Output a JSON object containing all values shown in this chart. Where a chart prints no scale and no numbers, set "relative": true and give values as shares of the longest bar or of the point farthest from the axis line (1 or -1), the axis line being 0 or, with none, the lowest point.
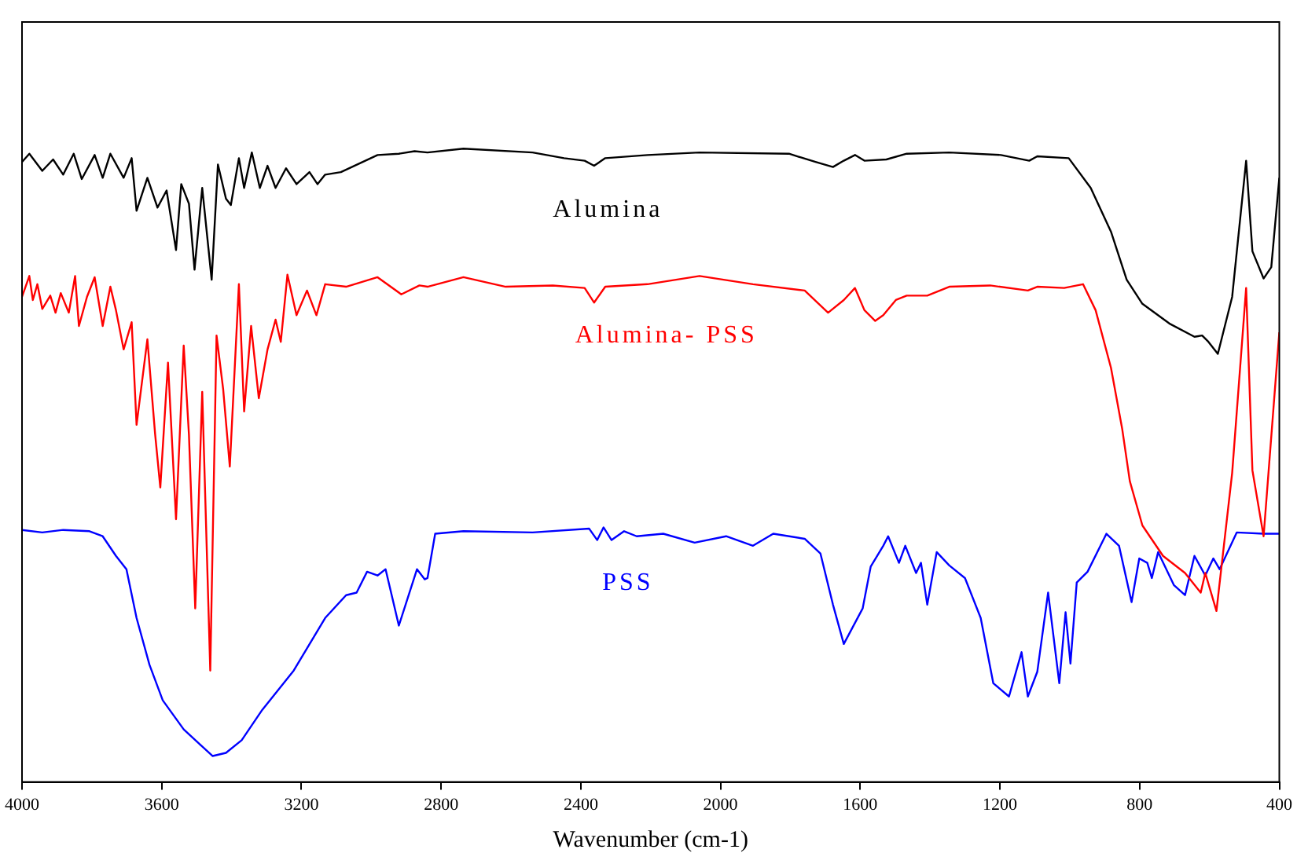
{
  "chart_data": {
    "type": "line",
    "relative": true,
    "xlabel": "Wavenumber (cm-1)",
    "xlim": [
      4000,
      400
    ],
    "xticks": [
      4000,
      3600,
      3200,
      2800,
      2400,
      2000,
      1600,
      1200,
      800,
      400
    ],
    "grid": false,
    "legend": false,
    "tick_labels": "x",
    "marker": "none",
    "line_style": "solid",
    "series": [
      {
        "name": "Alumina",
        "color": "#000000",
        "x": [
          4000,
          3979,
          3942,
          3911,
          3882,
          3852,
          3829,
          3792,
          3769,
          3747,
          3709,
          3686,
          3672,
          3641,
          3612,
          3586,
          3559,
          3544,
          3522,
          3506,
          3484,
          3457,
          3439,
          3416,
          3402,
          3379,
          3364,
          3342,
          3319,
          3297,
          3274,
          3244,
          3214,
          3177,
          3154,
          3132,
          3087,
          2982,
          2921,
          2876,
          2839,
          2736,
          2538,
          2448,
          2389,
          2362,
          2330,
          2209,
          2060,
          1804,
          1728,
          1678,
          1647,
          1615,
          1588,
          1525,
          1467,
          1345,
          1197,
          1116,
          1093,
          1003,
          940,
          882,
          837,
          792,
          715,
          643,
          621,
          603,
          576,
          535,
          495,
          477,
          445,
          423,
          400
        ],
        "values": [
          0.979,
          0.992,
          0.965,
          0.983,
          0.959,
          0.992,
          0.952,
          0.99,
          0.954,
          0.992,
          0.954,
          0.985,
          0.902,
          0.954,
          0.907,
          0.934,
          0.84,
          0.944,
          0.913,
          0.809,
          0.938,
          0.793,
          0.975,
          0.921,
          0.911,
          0.985,
          0.938,
          0.994,
          0.938,
          0.973,
          0.938,
          0.969,
          0.944,
          0.963,
          0.944,
          0.959,
          0.963,
          0.99,
          0.992,
          0.996,
          0.994,
          1.0,
          0.994,
          0.985,
          0.981,
          0.973,
          0.985,
          0.99,
          0.994,
          0.992,
          0.979,
          0.971,
          0.981,
          0.99,
          0.981,
          0.983,
          0.992,
          0.994,
          0.99,
          0.981,
          0.988,
          0.985,
          0.938,
          0.869,
          0.793,
          0.755,
          0.724,
          0.703,
          0.705,
          0.695,
          0.676,
          0.766,
          0.981,
          0.838,
          0.795,
          0.813,
          0.954
        ]
      },
      {
        "name": "Alumina- PSS",
        "color": "#ff0000",
        "x": [
          4000,
          3979,
          3969,
          3956,
          3942,
          3919,
          3904,
          3889,
          3866,
          3848,
          3837,
          3814,
          3792,
          3769,
          3747,
          3731,
          3709,
          3686,
          3672,
          3641,
          3619,
          3604,
          3582,
          3559,
          3537,
          3522,
          3504,
          3484,
          3461,
          3443,
          3424,
          3405,
          3379,
          3364,
          3344,
          3322,
          3297,
          3274,
          3259,
          3240,
          3214,
          3184,
          3157,
          3132,
          3072,
          2982,
          2914,
          2862,
          2839,
          2736,
          2615,
          2480,
          2389,
          2362,
          2330,
          2209,
          2060,
          1907,
          1759,
          1692,
          1647,
          1615,
          1588,
          1557,
          1534,
          1498,
          1467,
          1408,
          1345,
          1228,
          1120,
          1093,
          1016,
          962,
          926,
          882,
          850,
          828,
          792,
          733,
          670,
          625,
          612,
          580,
          535,
          495,
          477,
          445,
          400
        ],
        "values": [
          0.766,
          0.799,
          0.761,
          0.786,
          0.747,
          0.768,
          0.741,
          0.772,
          0.741,
          0.799,
          0.72,
          0.766,
          0.797,
          0.72,
          0.782,
          0.745,
          0.683,
          0.726,
          0.564,
          0.699,
          0.55,
          0.465,
          0.662,
          0.415,
          0.689,
          0.548,
          0.274,
          0.616,
          0.176,
          0.705,
          0.62,
          0.498,
          0.786,
          0.585,
          0.72,
          0.606,
          0.683,
          0.73,
          0.695,
          0.801,
          0.737,
          0.776,
          0.737,
          0.786,
          0.782,
          0.797,
          0.77,
          0.784,
          0.782,
          0.797,
          0.782,
          0.784,
          0.78,
          0.757,
          0.782,
          0.786,
          0.799,
          0.786,
          0.776,
          0.741,
          0.761,
          0.78,
          0.745,
          0.728,
          0.737,
          0.761,
          0.768,
          0.768,
          0.782,
          0.784,
          0.776,
          0.782,
          0.78,
          0.786,
          0.745,
          0.654,
          0.558,
          0.475,
          0.405,
          0.357,
          0.33,
          0.299,
          0.33,
          0.27,
          0.488,
          0.78,
          0.492,
          0.388,
          0.71
        ]
      },
      {
        "name": "PSS",
        "color": "#0000ff",
        "x": [
          4000,
          3942,
          3882,
          3807,
          3769,
          3731,
          3701,
          3672,
          3635,
          3597,
          3537,
          3492,
          3454,
          3416,
          3371,
          3312,
          3222,
          3132,
          3072,
          3042,
          3012,
          2982,
          2959,
          2921,
          2869,
          2847,
          2839,
          2817,
          2736,
          2538,
          2376,
          2353,
          2335,
          2312,
          2276,
          2240,
          2164,
          2074,
          1984,
          1907,
          1849,
          1759,
          1714,
          1678,
          1647,
          1593,
          1570,
          1534,
          1520,
          1489,
          1471,
          1440,
          1426,
          1408,
          1381,
          1345,
          1300,
          1255,
          1219,
          1174,
          1138,
          1120,
          1093,
          1062,
          1030,
          1012,
          998,
          980,
          949,
          895,
          859,
          823,
          801,
          778,
          765,
          747,
          702,
          670,
          643,
          612,
          589,
          571,
          522,
          445,
          400
        ],
        "values": [
          0.398,
          0.394,
          0.398,
          0.396,
          0.388,
          0.357,
          0.336,
          0.259,
          0.185,
          0.129,
          0.083,
          0.06,
          0.041,
          0.046,
          0.066,
          0.114,
          0.176,
          0.259,
          0.295,
          0.299,
          0.332,
          0.326,
          0.336,
          0.247,
          0.336,
          0.32,
          0.322,
          0.392,
          0.396,
          0.394,
          0.4,
          0.382,
          0.402,
          0.382,
          0.396,
          0.388,
          0.392,
          0.378,
          0.388,
          0.373,
          0.392,
          0.384,
          0.361,
          0.28,
          0.218,
          0.274,
          0.34,
          0.373,
          0.388,
          0.346,
          0.373,
          0.33,
          0.346,
          0.28,
          0.363,
          0.342,
          0.322,
          0.259,
          0.156,
          0.135,
          0.205,
          0.135,
          0.174,
          0.299,
          0.156,
          0.268,
          0.187,
          0.315,
          0.332,
          0.392,
          0.373,
          0.284,
          0.353,
          0.346,
          0.322,
          0.363,
          0.311,
          0.295,
          0.357,
          0.326,
          0.353,
          0.336,
          0.394,
          0.392,
          0.392
        ]
      }
    ]
  }
}
